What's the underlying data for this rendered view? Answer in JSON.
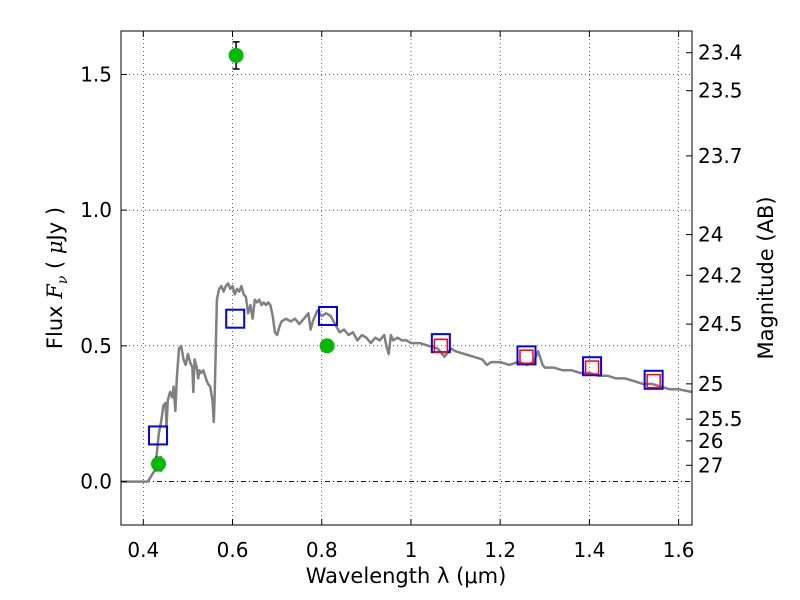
{
  "chart_data": {
    "type": "scatter",
    "xlabel": "Wavelength  λ (μm)",
    "ylabel": "Flux  F_ν  ( μJy )",
    "ylabel_right": "Magnitude (AB)",
    "xlim": [
      0.35,
      1.63
    ],
    "ylim": [
      -0.16,
      1.66
    ],
    "x_ticks": [
      0.4,
      0.6,
      0.8,
      1.0,
      1.2,
      1.4,
      1.6
    ],
    "x_tick_labels": [
      "0.4",
      "0.6",
      "0.8",
      "1",
      "1.2",
      "1.4",
      "1.6"
    ],
    "y_ticks": [
      0.0,
      0.5,
      1.0,
      1.5
    ],
    "y_tick_labels": [
      "0.0",
      "0.5",
      "1.0",
      "1.5"
    ],
    "right_axis_ticks": [
      {
        "label": "23.4",
        "flux": 1.58
      },
      {
        "label": "23.5",
        "flux": 1.44
      },
      {
        "label": "23.7",
        "flux": 1.2
      },
      {
        "label": "24",
        "flux": 0.91
      },
      {
        "label": "24.2",
        "flux": 0.76
      },
      {
        "label": "24.5",
        "flux": 0.58
      },
      {
        "label": "25",
        "flux": 0.36
      },
      {
        "label": "25.5",
        "flux": 0.23
      },
      {
        "label": "26",
        "flux": 0.15
      },
      {
        "label": "27",
        "flux": 0.06
      }
    ],
    "grid": true,
    "zero_line": true,
    "series": [
      {
        "kind": "line",
        "color": "#808080",
        "points": [
          [
            0.35,
            0.0
          ],
          [
            0.41,
            0.0
          ],
          [
            0.425,
            0.04
          ],
          [
            0.43,
            0.1
          ],
          [
            0.435,
            0.18
          ],
          [
            0.44,
            0.22
          ],
          [
            0.445,
            0.28
          ],
          [
            0.45,
            0.29
          ],
          [
            0.452,
            0.2
          ],
          [
            0.455,
            0.3
          ],
          [
            0.46,
            0.33
          ],
          [
            0.465,
            0.31
          ],
          [
            0.468,
            0.35
          ],
          [
            0.472,
            0.26
          ],
          [
            0.475,
            0.38
          ],
          [
            0.48,
            0.49
          ],
          [
            0.485,
            0.5
          ],
          [
            0.49,
            0.45
          ],
          [
            0.495,
            0.43
          ],
          [
            0.5,
            0.47
          ],
          [
            0.505,
            0.44
          ],
          [
            0.51,
            0.42
          ],
          [
            0.512,
            0.33
          ],
          [
            0.515,
            0.45
          ],
          [
            0.52,
            0.42
          ],
          [
            0.523,
            0.38
          ],
          [
            0.526,
            0.41
          ],
          [
            0.53,
            0.4
          ],
          [
            0.535,
            0.41
          ],
          [
            0.54,
            0.38
          ],
          [
            0.545,
            0.36
          ],
          [
            0.55,
            0.35
          ],
          [
            0.555,
            0.3
          ],
          [
            0.558,
            0.22
          ],
          [
            0.56,
            0.32
          ],
          [
            0.565,
            0.67
          ],
          [
            0.57,
            0.71
          ],
          [
            0.575,
            0.72
          ],
          [
            0.58,
            0.7
          ],
          [
            0.585,
            0.72
          ],
          [
            0.59,
            0.73
          ],
          [
            0.595,
            0.71
          ],
          [
            0.6,
            0.72
          ],
          [
            0.605,
            0.69
          ],
          [
            0.61,
            0.71
          ],
          [
            0.615,
            0.7
          ],
          [
            0.62,
            0.72
          ],
          [
            0.625,
            0.69
          ],
          [
            0.63,
            0.68
          ],
          [
            0.635,
            0.62
          ],
          [
            0.64,
            0.65
          ],
          [
            0.645,
            0.6
          ],
          [
            0.65,
            0.67
          ],
          [
            0.655,
            0.66
          ],
          [
            0.66,
            0.67
          ],
          [
            0.665,
            0.65
          ],
          [
            0.67,
            0.66
          ],
          [
            0.675,
            0.65
          ],
          [
            0.68,
            0.66
          ],
          [
            0.685,
            0.65
          ],
          [
            0.69,
            0.61
          ],
          [
            0.695,
            0.55
          ],
          [
            0.7,
            0.54
          ],
          [
            0.705,
            0.57
          ],
          [
            0.71,
            0.59
          ],
          [
            0.72,
            0.6
          ],
          [
            0.73,
            0.59
          ],
          [
            0.74,
            0.6
          ],
          [
            0.75,
            0.58
          ],
          [
            0.76,
            0.6
          ],
          [
            0.77,
            0.62
          ],
          [
            0.775,
            0.56
          ],
          [
            0.78,
            0.59
          ],
          [
            0.79,
            0.63
          ],
          [
            0.8,
            0.61
          ],
          [
            0.81,
            0.62
          ],
          [
            0.82,
            0.61
          ],
          [
            0.83,
            0.58
          ],
          [
            0.84,
            0.55
          ],
          [
            0.85,
            0.56
          ],
          [
            0.86,
            0.54
          ],
          [
            0.87,
            0.55
          ],
          [
            0.88,
            0.52
          ],
          [
            0.89,
            0.54
          ],
          [
            0.9,
            0.53
          ],
          [
            0.91,
            0.51
          ],
          [
            0.92,
            0.53
          ],
          [
            0.93,
            0.52
          ],
          [
            0.94,
            0.54
          ],
          [
            0.945,
            0.5
          ],
          [
            0.95,
            0.47
          ],
          [
            0.955,
            0.54
          ],
          [
            0.96,
            0.52
          ],
          [
            0.97,
            0.53
          ],
          [
            0.98,
            0.52
          ],
          [
            0.99,
            0.52
          ],
          [
            1.0,
            0.51
          ],
          [
            1.02,
            0.51
          ],
          [
            1.04,
            0.5
          ],
          [
            1.06,
            0.49
          ],
          [
            1.075,
            0.46
          ],
          [
            1.09,
            0.49
          ],
          [
            1.1,
            0.48
          ],
          [
            1.12,
            0.47
          ],
          [
            1.14,
            0.46
          ],
          [
            1.16,
            0.45
          ],
          [
            1.17,
            0.43
          ],
          [
            1.18,
            0.44
          ],
          [
            1.2,
            0.44
          ],
          [
            1.22,
            0.43
          ],
          [
            1.24,
            0.44
          ],
          [
            1.26,
            0.43
          ],
          [
            1.275,
            0.44
          ],
          [
            1.285,
            0.48
          ],
          [
            1.295,
            0.43
          ],
          [
            1.3,
            0.42
          ],
          [
            1.32,
            0.42
          ],
          [
            1.34,
            0.41
          ],
          [
            1.36,
            0.41
          ],
          [
            1.38,
            0.4
          ],
          [
            1.4,
            0.4
          ],
          [
            1.42,
            0.39
          ],
          [
            1.44,
            0.39
          ],
          [
            1.46,
            0.38
          ],
          [
            1.48,
            0.38
          ],
          [
            1.5,
            0.37
          ],
          [
            1.52,
            0.36
          ],
          [
            1.54,
            0.36
          ],
          [
            1.56,
            0.35
          ],
          [
            1.58,
            0.34
          ],
          [
            1.6,
            0.34
          ],
          [
            1.63,
            0.33
          ]
        ]
      },
      {
        "kind": "points",
        "marker": "circle",
        "color": "#00bb00",
        "points": [
          {
            "x": 0.434,
            "y": 0.065,
            "err": 0.025
          },
          {
            "x": 0.608,
            "y": 1.57,
            "err": 0.05
          },
          {
            "x": 0.812,
            "y": 0.5,
            "err": 0.015
          }
        ]
      },
      {
        "kind": "points",
        "marker": "square",
        "color": "#0000ff",
        "points": [
          {
            "x": 0.433,
            "y": 0.17
          },
          {
            "x": 0.606,
            "y": 0.6
          },
          {
            "x": 0.814,
            "y": 0.61
          },
          {
            "x": 1.067,
            "y": 0.51
          },
          {
            "x": 1.259,
            "y": 0.465
          },
          {
            "x": 1.406,
            "y": 0.425
          },
          {
            "x": 1.544,
            "y": 0.375
          }
        ]
      },
      {
        "kind": "points",
        "marker": "square",
        "color": "#ff0000",
        "points": [
          {
            "x": 1.067,
            "y": 0.5
          },
          {
            "x": 1.259,
            "y": 0.46
          },
          {
            "x": 1.406,
            "y": 0.42
          },
          {
            "x": 1.544,
            "y": 0.37
          }
        ]
      }
    ]
  }
}
